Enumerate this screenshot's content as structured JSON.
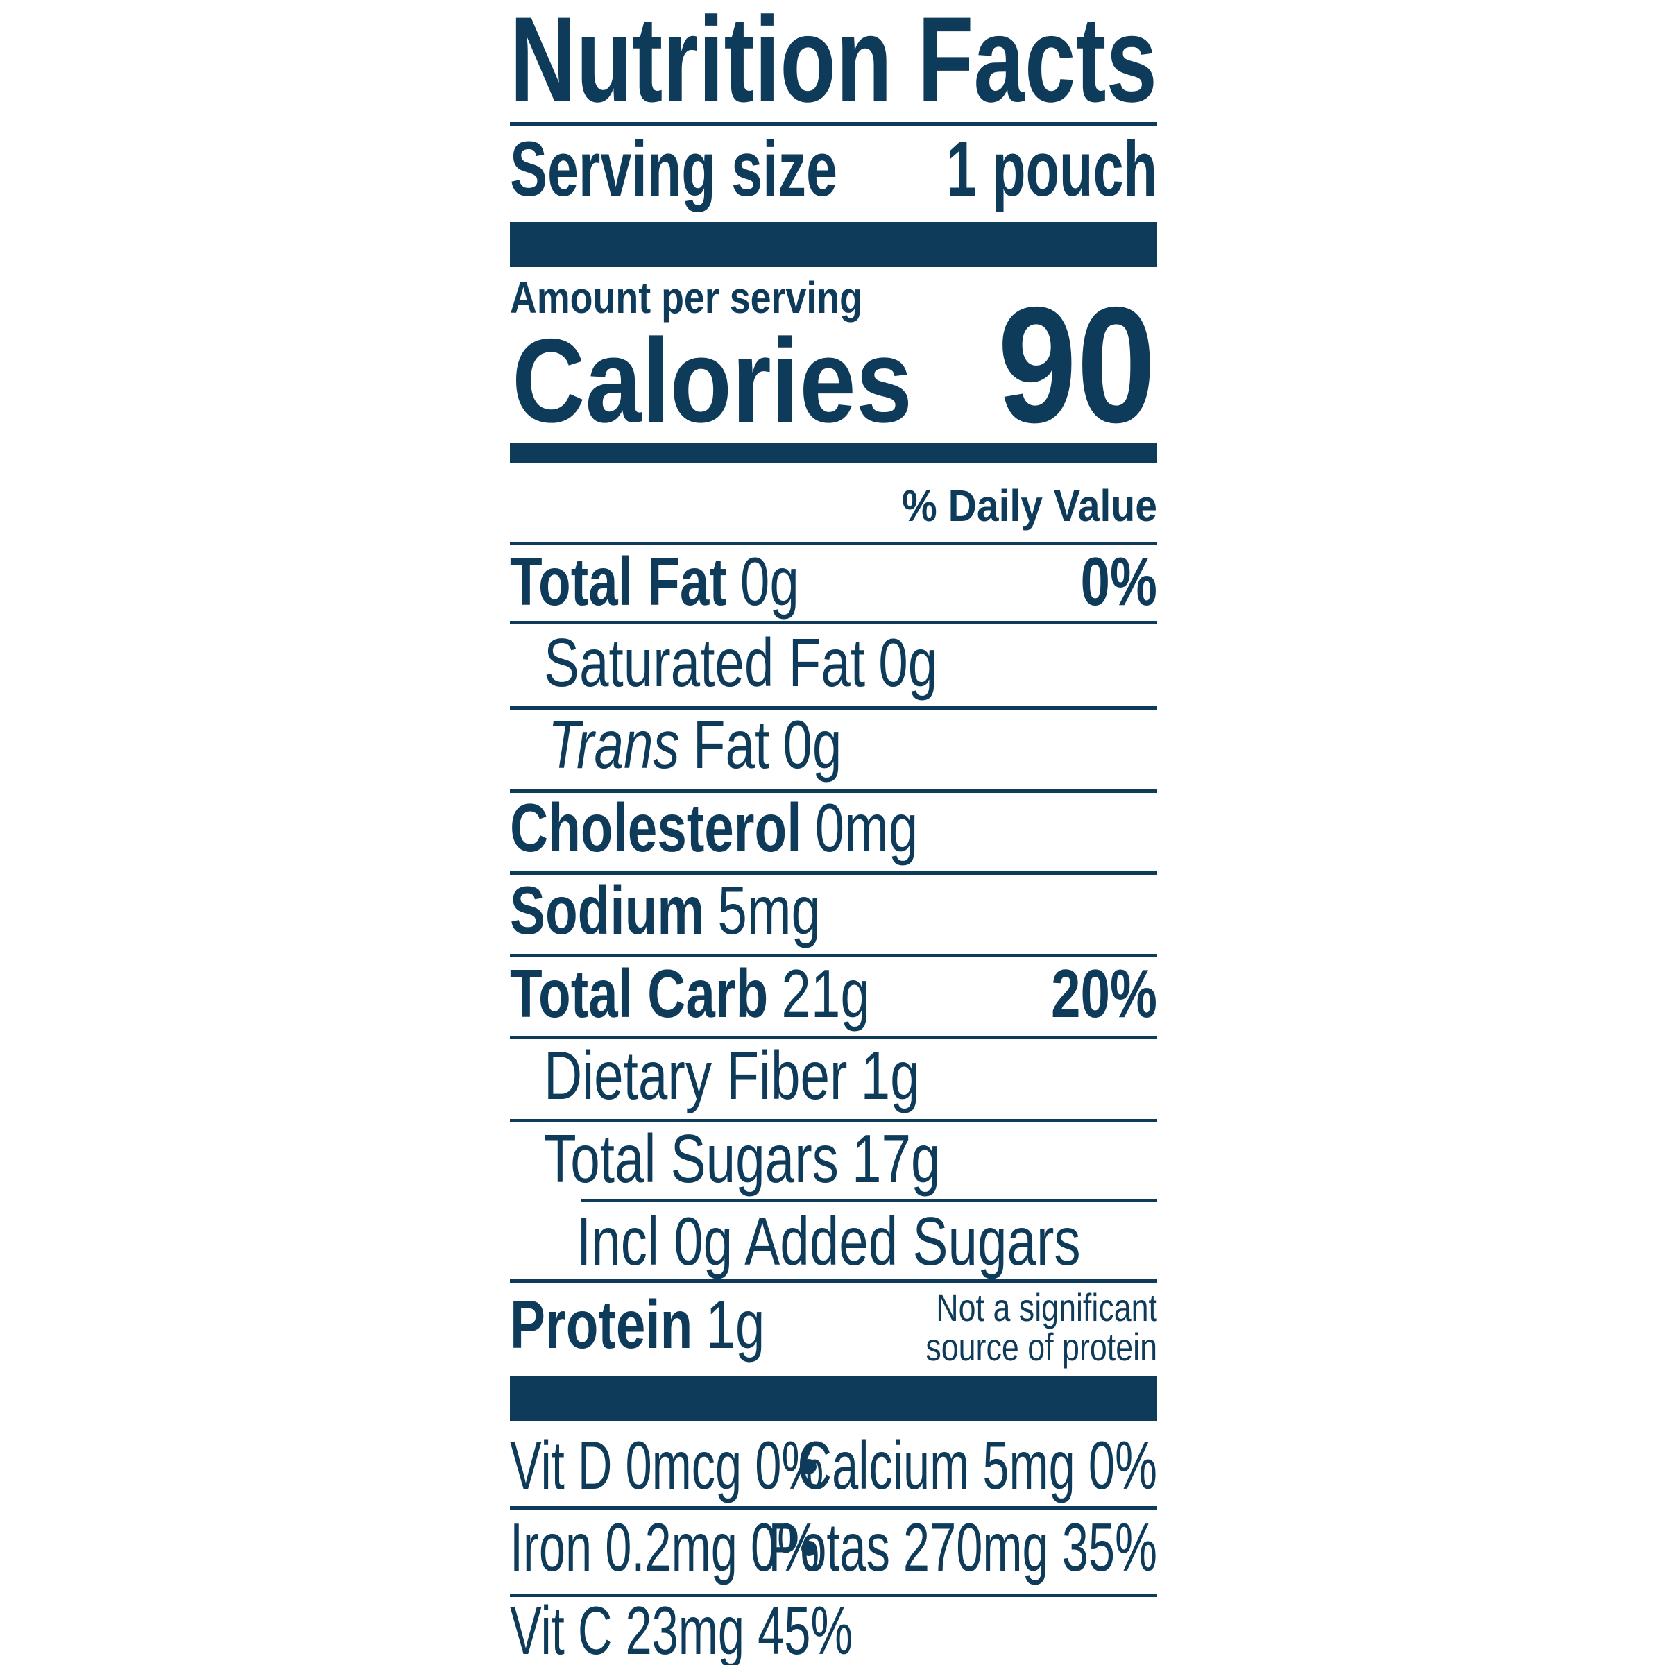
{
  "header": {
    "title": "Nutrition Facts",
    "serving_label": "Serving size",
    "serving_value": "1 pouch",
    "amount_label": "Amount per serving",
    "calories_label": "Calories",
    "calories_value": "90",
    "daily_value_label": "% Daily Value"
  },
  "rows": [
    {
      "label": "Total Fat",
      "amount": "0g",
      "dv": "0%"
    },
    {
      "label": "Saturated Fat",
      "amount": "0g"
    },
    {
      "label_italic": "Trans",
      "label": "Fat",
      "amount": "0g"
    },
    {
      "label": "Cholesterol",
      "amount": "0mg"
    },
    {
      "label": "Sodium",
      "amount": "5mg"
    },
    {
      "label": "Total Carb",
      "amount": "21g",
      "dv": "20%"
    },
    {
      "label": "Dietary Fiber",
      "amount": "1g"
    },
    {
      "label": "Total Sugars",
      "amount": "17g"
    },
    {
      "label": "Incl 0g Added Sugars"
    },
    {
      "label": "Protein",
      "amount": "1g",
      "note": [
        "Not a significant",
        "source of protein"
      ]
    }
  ],
  "footer": [
    [
      "Vit D 0mcg 0%",
      "Calcium 5mg 0%"
    ],
    [
      "Iron 0.2mg 0%",
      "Potas 270mg 35%"
    ],
    [
      "Vit C 23mg 45%"
    ]
  ]
}
